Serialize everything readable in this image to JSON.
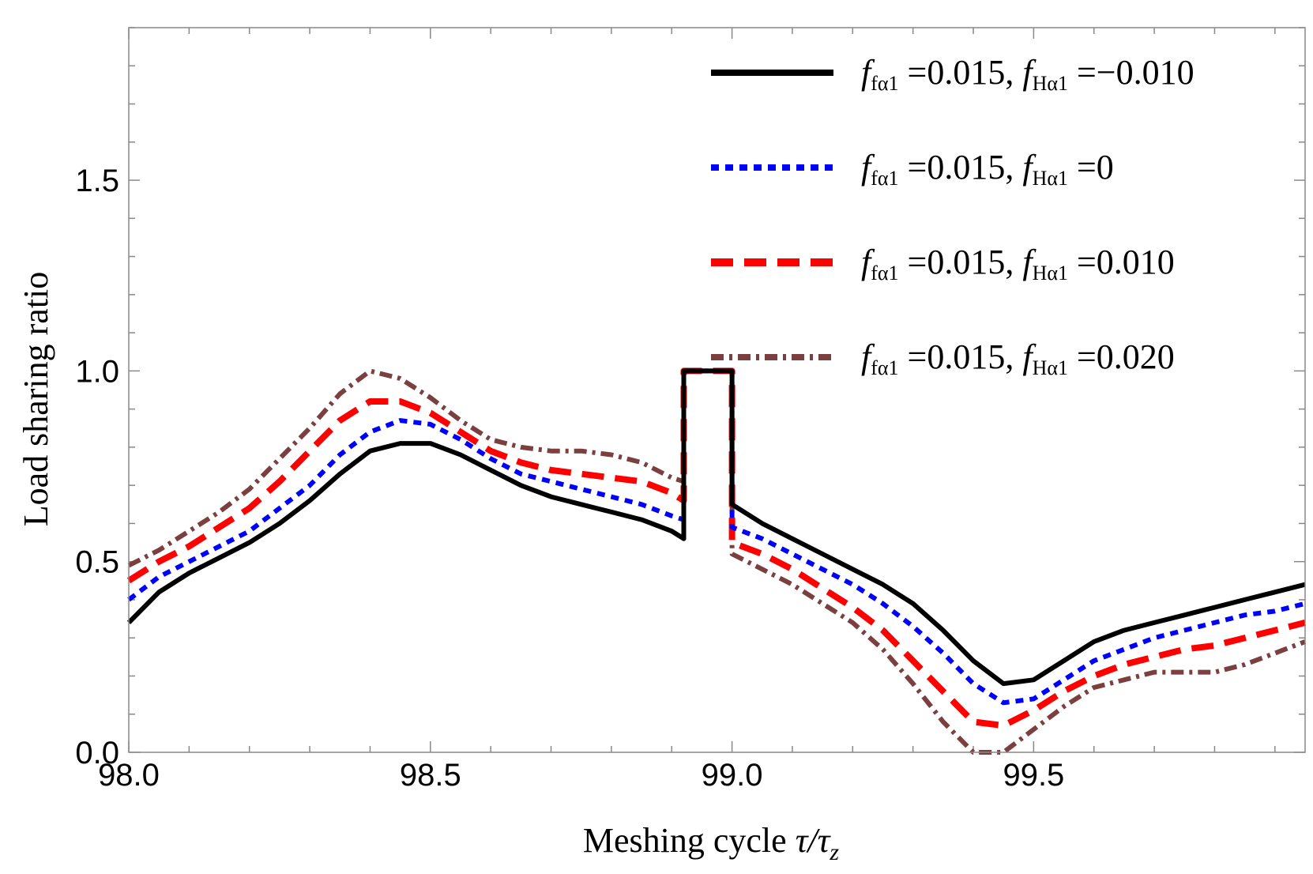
{
  "chart_data": {
    "type": "line",
    "title": "",
    "xlabel_main": "Meshing cycle ",
    "xlabel_math": "τ/τ",
    "xlabel_sub": "z",
    "ylabel": "Load sharing ratio",
    "xlim": [
      98.0,
      99.95
    ],
    "ylim": [
      0.0,
      1.9
    ],
    "x_ticks": [
      {
        "value": 98.0,
        "label": "98.0"
      },
      {
        "value": 98.5,
        "label": "98.5"
      },
      {
        "value": 99.0,
        "label": "99.0"
      },
      {
        "value": 99.5,
        "label": "99.5"
      }
    ],
    "y_ticks": [
      {
        "value": 0.0,
        "label": "0.0"
      },
      {
        "value": 0.5,
        "label": "0.5"
      },
      {
        "value": 1.0,
        "label": "1.0"
      },
      {
        "value": 1.5,
        "label": "1.5"
      }
    ],
    "series": [
      {
        "name": "f_fα1 =0.015, f_Hα1 =−0.010",
        "legend": {
          "f1": "f",
          "s1": "fα1",
          "v1": " =0.015, ",
          "f2": "f",
          "s2": "Hα1",
          "v2": " =−0.010"
        },
        "color": "#000000",
        "dash": "none",
        "width": 6,
        "points": [
          [
            98.0,
            0.34
          ],
          [
            98.05,
            0.42
          ],
          [
            98.1,
            0.47
          ],
          [
            98.15,
            0.51
          ],
          [
            98.2,
            0.55
          ],
          [
            98.25,
            0.6
          ],
          [
            98.3,
            0.66
          ],
          [
            98.35,
            0.73
          ],
          [
            98.4,
            0.79
          ],
          [
            98.45,
            0.81
          ],
          [
            98.5,
            0.81
          ],
          [
            98.55,
            0.78
          ],
          [
            98.6,
            0.74
          ],
          [
            98.65,
            0.7
          ],
          [
            98.7,
            0.67
          ],
          [
            98.75,
            0.65
          ],
          [
            98.8,
            0.63
          ],
          [
            98.85,
            0.61
          ],
          [
            98.9,
            0.58
          ],
          [
            98.92,
            0.56
          ],
          [
            98.92,
            1.0
          ],
          [
            99.0,
            1.0
          ],
          [
            99.0,
            0.65
          ],
          [
            99.05,
            0.6
          ],
          [
            99.1,
            0.56
          ],
          [
            99.15,
            0.52
          ],
          [
            99.2,
            0.48
          ],
          [
            99.25,
            0.44
          ],
          [
            99.3,
            0.39
          ],
          [
            99.35,
            0.32
          ],
          [
            99.4,
            0.24
          ],
          [
            99.45,
            0.18
          ],
          [
            99.5,
            0.19
          ],
          [
            99.55,
            0.24
          ],
          [
            99.6,
            0.29
          ],
          [
            99.65,
            0.32
          ],
          [
            99.7,
            0.34
          ],
          [
            99.75,
            0.36
          ],
          [
            99.8,
            0.38
          ],
          [
            99.85,
            0.4
          ],
          [
            99.9,
            0.42
          ],
          [
            99.95,
            0.44
          ]
        ]
      },
      {
        "name": "f_fα1 =0.015, f_Hα1 =0",
        "legend": {
          "f1": "f",
          "s1": "fα1",
          "v1": " =0.015, ",
          "f2": "f",
          "s2": "Hα1",
          "v2": " =0"
        },
        "color": "#0000ff",
        "dash": "10,8",
        "width": 6,
        "points": [
          [
            98.0,
            0.4
          ],
          [
            98.05,
            0.46
          ],
          [
            98.1,
            0.5
          ],
          [
            98.15,
            0.54
          ],
          [
            98.2,
            0.58
          ],
          [
            98.25,
            0.64
          ],
          [
            98.3,
            0.7
          ],
          [
            98.35,
            0.78
          ],
          [
            98.4,
            0.84
          ],
          [
            98.45,
            0.87
          ],
          [
            98.5,
            0.86
          ],
          [
            98.55,
            0.82
          ],
          [
            98.6,
            0.77
          ],
          [
            98.65,
            0.73
          ],
          [
            98.7,
            0.71
          ],
          [
            98.75,
            0.69
          ],
          [
            98.8,
            0.67
          ],
          [
            98.85,
            0.65
          ],
          [
            98.9,
            0.62
          ],
          [
            98.92,
            0.61
          ],
          [
            98.92,
            1.0
          ],
          [
            99.0,
            1.0
          ],
          [
            99.0,
            0.59
          ],
          [
            99.05,
            0.56
          ],
          [
            99.1,
            0.52
          ],
          [
            99.15,
            0.48
          ],
          [
            99.2,
            0.44
          ],
          [
            99.25,
            0.39
          ],
          [
            99.3,
            0.33
          ],
          [
            99.35,
            0.26
          ],
          [
            99.4,
            0.18
          ],
          [
            99.45,
            0.13
          ],
          [
            99.5,
            0.14
          ],
          [
            99.55,
            0.19
          ],
          [
            99.6,
            0.24
          ],
          [
            99.65,
            0.27
          ],
          [
            99.7,
            0.3
          ],
          [
            99.75,
            0.32
          ],
          [
            99.8,
            0.34
          ],
          [
            99.85,
            0.36
          ],
          [
            99.9,
            0.37
          ],
          [
            99.95,
            0.39
          ]
        ]
      },
      {
        "name": "f_fα1 =0.015, f_Hα1 =0.010",
        "legend": {
          "f1": "f",
          "s1": "fα1",
          "v1": " =0.015, ",
          "f2": "f",
          "s2": "Hα1",
          "v2": " =0.010"
        },
        "color": "#ff0000",
        "dash": "28,14",
        "width": 8,
        "points": [
          [
            98.0,
            0.45
          ],
          [
            98.05,
            0.5
          ],
          [
            98.1,
            0.54
          ],
          [
            98.15,
            0.59
          ],
          [
            98.2,
            0.64
          ],
          [
            98.25,
            0.71
          ],
          [
            98.3,
            0.79
          ],
          [
            98.35,
            0.87
          ],
          [
            98.4,
            0.92
          ],
          [
            98.45,
            0.92
          ],
          [
            98.5,
            0.89
          ],
          [
            98.55,
            0.84
          ],
          [
            98.6,
            0.79
          ],
          [
            98.65,
            0.76
          ],
          [
            98.7,
            0.74
          ],
          [
            98.75,
            0.73
          ],
          [
            98.8,
            0.72
          ],
          [
            98.85,
            0.71
          ],
          [
            98.9,
            0.68
          ],
          [
            98.92,
            0.66
          ],
          [
            98.92,
            1.0
          ],
          [
            99.0,
            1.0
          ],
          [
            99.0,
            0.55
          ],
          [
            99.05,
            0.52
          ],
          [
            99.1,
            0.48
          ],
          [
            99.15,
            0.43
          ],
          [
            99.2,
            0.38
          ],
          [
            99.25,
            0.32
          ],
          [
            99.3,
            0.24
          ],
          [
            99.35,
            0.16
          ],
          [
            99.4,
            0.08
          ],
          [
            99.45,
            0.07
          ],
          [
            99.5,
            0.11
          ],
          [
            99.55,
            0.16
          ],
          [
            99.6,
            0.2
          ],
          [
            99.65,
            0.23
          ],
          [
            99.7,
            0.25
          ],
          [
            99.75,
            0.27
          ],
          [
            99.8,
            0.28
          ],
          [
            99.85,
            0.3
          ],
          [
            99.9,
            0.32
          ],
          [
            99.95,
            0.34
          ]
        ]
      },
      {
        "name": "f_fα1 =0.015, f_Hα1 =0.020",
        "legend": {
          "f1": "f",
          "s1": "fα1",
          "v1": " =0.015, ",
          "f2": "f",
          "s2": "Hα1",
          "v2": " =0.020"
        },
        "color": "#7b3f3f",
        "dash": "16,7,4,7",
        "width": 6,
        "points": [
          [
            98.0,
            0.49
          ],
          [
            98.05,
            0.53
          ],
          [
            98.1,
            0.58
          ],
          [
            98.15,
            0.63
          ],
          [
            98.2,
            0.69
          ],
          [
            98.25,
            0.77
          ],
          [
            98.3,
            0.85
          ],
          [
            98.35,
            0.94
          ],
          [
            98.4,
            1.0
          ],
          [
            98.45,
            0.98
          ],
          [
            98.5,
            0.93
          ],
          [
            98.55,
            0.87
          ],
          [
            98.6,
            0.82
          ],
          [
            98.65,
            0.8
          ],
          [
            98.7,
            0.79
          ],
          [
            98.75,
            0.79
          ],
          [
            98.8,
            0.78
          ],
          [
            98.85,
            0.76
          ],
          [
            98.9,
            0.72
          ],
          [
            98.92,
            0.71
          ],
          [
            98.92,
            1.0
          ],
          [
            99.0,
            1.0
          ],
          [
            99.0,
            0.52
          ],
          [
            99.05,
            0.48
          ],
          [
            99.1,
            0.44
          ],
          [
            99.15,
            0.39
          ],
          [
            99.2,
            0.34
          ],
          [
            99.25,
            0.27
          ],
          [
            99.3,
            0.18
          ],
          [
            99.35,
            0.08
          ],
          [
            99.4,
            0.0
          ],
          [
            99.45,
            0.0
          ],
          [
            99.5,
            0.06
          ],
          [
            99.55,
            0.12
          ],
          [
            99.6,
            0.17
          ],
          [
            99.65,
            0.19
          ],
          [
            99.7,
            0.21
          ],
          [
            99.75,
            0.21
          ],
          [
            99.8,
            0.21
          ],
          [
            99.85,
            0.23
          ],
          [
            99.9,
            0.26
          ],
          [
            99.95,
            0.29
          ]
        ]
      }
    ],
    "legend_position": "top-right",
    "grid": false
  }
}
